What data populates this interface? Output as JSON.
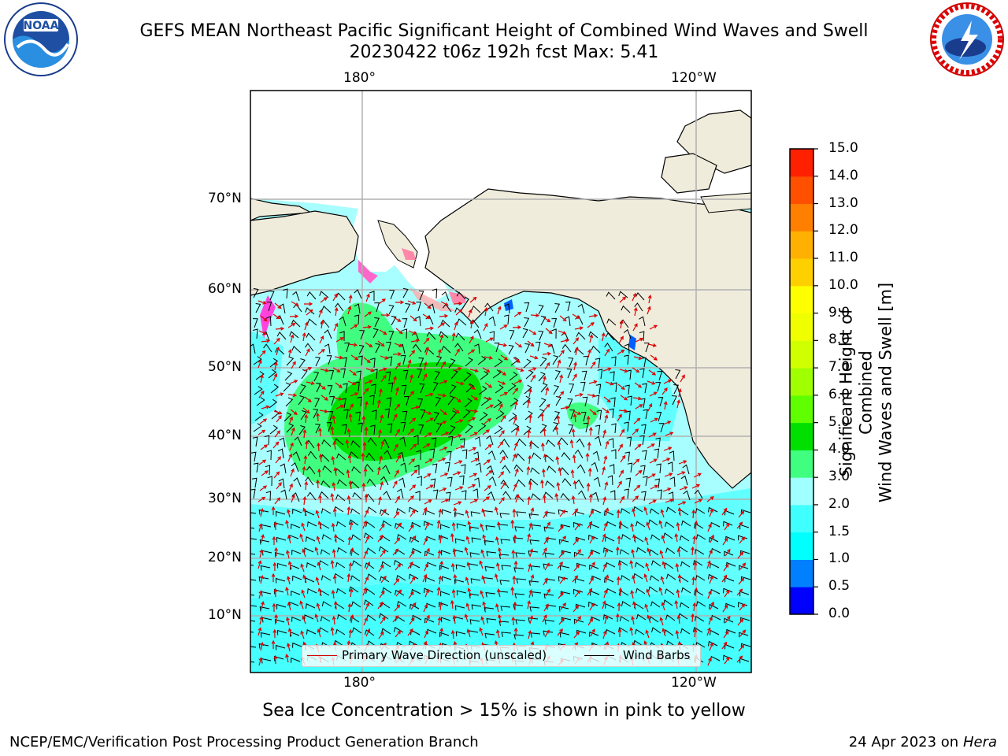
{
  "header": {
    "title_line1": "GEFS MEAN Northeast Pacific Significant Height of Combined Wind Waves and Swell",
    "title_line2": "20230422 t06z 192h fcst   Max: 5.41"
  },
  "logos": {
    "left": "noaa-logo-icon",
    "right": "nws-logo-icon"
  },
  "map": {
    "lon_labels_top": [
      "180°",
      "120°W"
    ],
    "lon_labels_bottom": [
      "180°",
      "120°W"
    ],
    "lat_labels": [
      "70°N",
      "60°N",
      "50°N",
      "40°N",
      "30°N",
      "20°N",
      "10°N"
    ],
    "land_color": "#efecdc",
    "ocean_base_color": "#a8fefe"
  },
  "legend": {
    "items": [
      {
        "label": "Primary Wave Direction (unscaled)",
        "color": "#d00000"
      },
      {
        "label": "Wind Barbs",
        "color": "#000000"
      }
    ]
  },
  "colorbar": {
    "ticks": [
      "15.0",
      "14.0",
      "13.0",
      "12.0",
      "11.0",
      "10.0",
      "9.0",
      "8.0",
      "7.0",
      "6.0",
      "5.0",
      "4.0",
      "3.0",
      "2.0",
      "1.5",
      "1.0",
      "0.5",
      "0.0"
    ],
    "colors_bottom_to_top": [
      "#0000ff",
      "#0080ff",
      "#00ffff",
      "#40ffff",
      "#a0ffff",
      "#40ff80",
      "#00e000",
      "#60ff00",
      "#a0ff00",
      "#d0ff00",
      "#f0ff00",
      "#ffff00",
      "#ffd000",
      "#ffb000",
      "#ff8000",
      "#ff5000",
      "#ff2000"
    ],
    "title_line1": "Significant Height of Combined",
    "title_line2": "Wind Waves and Swell [m]"
  },
  "caption": "Sea Ice Concentration > 15% is shown in pink to yellow",
  "footer": {
    "left": "NCEP/EMC/Verification Post Processing Product Generation Branch",
    "right_date": "24 Apr 2023 on ",
    "right_host": "Hera"
  }
}
